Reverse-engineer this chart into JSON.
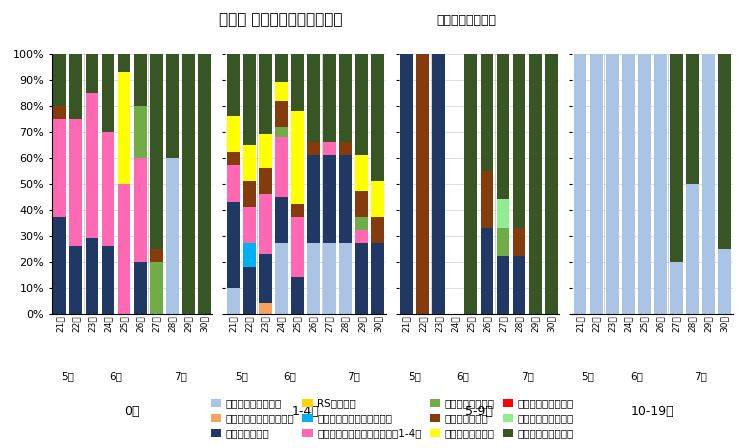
{
  "title": "年齢別 病原体検出割合の推移",
  "title_suffix": "（不検出を除く）",
  "weeks": [
    "21週",
    "22週",
    "23週",
    "24週",
    "25週",
    "26週",
    "27週",
    "28週",
    "29週",
    "30週"
  ],
  "age_groups": [
    "0歳",
    "1-4歳",
    "5-9歳",
    "10-19歳"
  ],
  "months": {
    "5月": [
      0,
      1
    ],
    "6月": [
      2,
      3,
      4,
      5
    ],
    "7月": [
      6,
      7,
      8,
      9
    ]
  },
  "pathogens": [
    "新型コロナウイルス",
    "インフルエンザウイルス",
    "ライノウイルス",
    "RSウイルス",
    "ヒトメタニューモウイルス",
    "パラインフルエンザウイルス1-4型",
    "ヒトボカウイルス",
    "アデノウイルス",
    "エンテロウイルス",
    "ヒトパレコウイルス",
    "ヒトコロナウイルス",
    "肺炎マイコプラズマ"
  ],
  "colors": [
    "#a9c4e4",
    "#f4a460",
    "#1f3864",
    "#ffd700",
    "#00b0f0",
    "#ff69b4",
    "#70ad47",
    "#843c0c",
    "#ffff00",
    "#ff0000",
    "#90ee90",
    "#375623"
  ],
  "data": {
    "0歳": {
      "新型コロナウイルス": [
        0,
        0,
        0,
        0,
        0,
        0,
        0,
        0.6,
        0,
        0
      ],
      "インフルエンザウイルス": [
        0,
        0,
        0,
        0,
        0,
        0,
        0,
        0,
        0,
        0
      ],
      "ライノウイルス": [
        0.37,
        0.26,
        0.29,
        0.26,
        0,
        0.2,
        0,
        0,
        0,
        0
      ],
      "RSウイルス": [
        0,
        0,
        0,
        0,
        0,
        0,
        0,
        0,
        0,
        0
      ],
      "ヒトメタニューモウイルス": [
        0,
        0,
        0,
        0,
        0,
        0,
        0,
        0,
        0,
        0
      ],
      "パラインフルエンザウイルス1-4型": [
        0.38,
        0.49,
        0.56,
        0.44,
        0.5,
        0.4,
        0,
        0,
        0,
        0
      ],
      "ヒトボカウイルス": [
        0,
        0,
        0,
        0,
        0,
        0.2,
        0.2,
        0,
        0,
        0
      ],
      "アデノウイルス": [
        0.05,
        0,
        0,
        0,
        0,
        0,
        0.05,
        0,
        0,
        0
      ],
      "エンテロウイルス": [
        0,
        0,
        0,
        0,
        0.43,
        0,
        0,
        0,
        0,
        0
      ],
      "ヒトパレコウイルス": [
        0,
        0,
        0,
        0,
        0,
        0,
        0,
        0,
        0,
        0
      ],
      "ヒトコロナウイルス": [
        0,
        0,
        0,
        0,
        0,
        0,
        0,
        0,
        0,
        0
      ],
      "肺炎マイコプラズマ": [
        0.2,
        0.25,
        0.15,
        0.3,
        0.07,
        0.2,
        0.75,
        0.4,
        1.0,
        1.0
      ]
    },
    "1-4歳": {
      "新型コロナウイルス": [
        0.1,
        0,
        0,
        0.27,
        0,
        0.27,
        0.27,
        0.27,
        0,
        0
      ],
      "インフルエンザウイルス": [
        0,
        0,
        0.04,
        0,
        0,
        0,
        0,
        0,
        0,
        0
      ],
      "ライノウイルス": [
        0.33,
        0.18,
        0.19,
        0.18,
        0.14,
        0.34,
        0.34,
        0.34,
        0.27,
        0.27
      ],
      "RSウイルス": [
        0,
        0,
        0,
        0,
        0,
        0,
        0,
        0,
        0,
        0
      ],
      "ヒトメタニューモウイルス": [
        0,
        0.09,
        0,
        0,
        0,
        0,
        0,
        0,
        0,
        0
      ],
      "パラインフルエンザウイルス1-4型": [
        0.14,
        0.14,
        0.23,
        0.23,
        0.23,
        0,
        0.05,
        0,
        0.05,
        0
      ],
      "ヒトボカウイルス": [
        0,
        0,
        0,
        0.04,
        0,
        0,
        0,
        0,
        0.05,
        0
      ],
      "アデノウイルス": [
        0.05,
        0.1,
        0.1,
        0.1,
        0.05,
        0.05,
        0,
        0.05,
        0.1,
        0.1
      ],
      "エンテロウイルス": [
        0.14,
        0.14,
        0.13,
        0.07,
        0.36,
        0,
        0,
        0,
        0.14,
        0.14
      ],
      "ヒトパレコウイルス": [
        0,
        0,
        0,
        0,
        0,
        0,
        0,
        0,
        0,
        0
      ],
      "ヒトコロナウイルス": [
        0,
        0,
        0,
        0,
        0,
        0,
        0,
        0,
        0,
        0
      ],
      "肺炎マイコプラズマ": [
        0.24,
        0.35,
        0.31,
        0.11,
        0.22,
        0.34,
        0.34,
        0.34,
        0.39,
        0.49
      ]
    },
    "5-9歳": {
      "新型コロナウイルス": [
        0,
        0,
        0,
        0,
        0,
        0,
        0,
        0,
        0,
        0
      ],
      "インフルエンザウイルス": [
        0,
        0,
        0,
        0,
        0,
        0,
        0,
        0,
        0,
        0
      ],
      "ライノウイルス": [
        1.0,
        0,
        1.0,
        0,
        0,
        0.33,
        0.22,
        0.22,
        0,
        0
      ],
      "RSウイルス": [
        0,
        0,
        0,
        0,
        0,
        0,
        0,
        0,
        0,
        0
      ],
      "ヒトメタニューモウイルス": [
        0,
        0,
        0,
        0,
        0,
        0,
        0,
        0,
        0,
        0
      ],
      "パラインフルエンザウイルス1-4型": [
        0,
        0,
        0,
        0,
        0,
        0,
        0,
        0,
        0,
        0
      ],
      "ヒトボカウイルス": [
        0,
        0,
        0,
        0,
        0,
        0,
        0.11,
        0,
        0,
        0
      ],
      "アデノウイルス": [
        0,
        1.0,
        0,
        0,
        0,
        0.22,
        0,
        0.11,
        0,
        0
      ],
      "エンテロウイルス": [
        0,
        0,
        0,
        0,
        0,
        0,
        0,
        0,
        0,
        0
      ],
      "ヒトパレコウイルス": [
        0,
        0,
        0,
        0,
        0,
        0,
        0,
        0,
        0,
        0
      ],
      "ヒトコロナウイルス": [
        0,
        0,
        0,
        0,
        0,
        0,
        0.11,
        0,
        0,
        0
      ],
      "肺炎マイコプラズマ": [
        0,
        0,
        0,
        0,
        1.0,
        0.45,
        0.56,
        0.67,
        1.0,
        1.0
      ]
    },
    "10-19歳": {
      "新型コロナウイルス": [
        1.0,
        1.0,
        1.0,
        1.0,
        1.0,
        1.0,
        0.2,
        0.5,
        1.0,
        0.25
      ],
      "インフルエンザウイルス": [
        0,
        0,
        0,
        0,
        0,
        0,
        0,
        0,
        0,
        0
      ],
      "ライノウイルス": [
        0,
        0,
        0,
        0,
        0,
        0,
        0,
        0,
        0,
        0
      ],
      "RSウイルス": [
        0,
        0,
        0,
        0,
        0,
        0,
        0,
        0,
        0,
        0
      ],
      "ヒトメタニューモウイルス": [
        0,
        0,
        0,
        0,
        0,
        0,
        0,
        0,
        0,
        0
      ],
      "パラインフルエンザウイルス1-4型": [
        0,
        0,
        0,
        0,
        0,
        0,
        0,
        0,
        0,
        0
      ],
      "ヒトボカウイルス": [
        0,
        0,
        0,
        0,
        0,
        0,
        0,
        0,
        0,
        0
      ],
      "アデノウイルス": [
        0,
        0,
        0,
        0,
        0,
        0,
        0,
        0,
        0,
        0
      ],
      "エンテロウイルス": [
        0,
        0,
        0,
        0,
        0,
        0,
        0,
        0,
        0,
        0
      ],
      "ヒトパレコウイルス": [
        0,
        0,
        0,
        0,
        0,
        0,
        0,
        0,
        0,
        0
      ],
      "ヒトコロナウイルス": [
        0,
        0,
        0,
        0,
        0,
        0,
        0,
        0,
        0,
        0
      ],
      "肺炎マイコプラズマ": [
        0,
        0,
        0,
        0,
        0,
        0,
        0.8,
        0.5,
        0,
        0.75
      ]
    }
  },
  "month_positions": {
    "0歳": {
      "5月": [
        0,
        1
      ],
      "6月": [
        2,
        3,
        4,
        5
      ],
      "7月": [
        6,
        7,
        8,
        9
      ]
    },
    "1-4歳": {
      "5月": [
        0,
        1
      ],
      "6月": [
        2,
        3,
        4,
        5
      ],
      "7月": [
        6,
        7,
        8,
        9
      ]
    },
    "5-9歳": {
      "5月": [
        0,
        1
      ],
      "6月": [
        2,
        3,
        4,
        5
      ],
      "7月": [
        6,
        7,
        8,
        9
      ]
    },
    "10-19歳": {
      "5月": [
        0,
        1
      ],
      "6月": [
        2,
        3,
        4,
        5
      ],
      "7月": [
        6,
        7,
        8,
        9
      ]
    }
  },
  "ylabel": "0%",
  "ylim": [
    0,
    1
  ],
  "yticks": [
    0,
    0.1,
    0.2,
    0.3,
    0.4,
    0.5,
    0.6,
    0.7,
    0.8,
    0.9,
    1.0
  ],
  "ytick_labels": [
    "0%",
    "10%",
    "20%",
    "30%",
    "40%",
    "50%",
    "60%",
    "70%",
    "80%",
    "90%",
    "100%"
  ],
  "bar_width": 0.8,
  "background_color": "#ffffff",
  "grid_color": "#d3d3d3"
}
